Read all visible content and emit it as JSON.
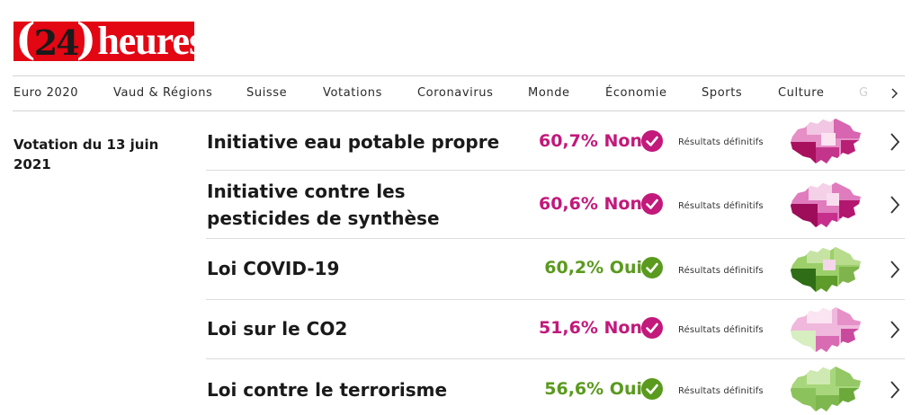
{
  "brand": {
    "paren_open": "(",
    "number": "24",
    "paren_close": ")",
    "word": "heures"
  },
  "nav": {
    "items": [
      "Euro 2020",
      "Vaud & Régions",
      "Suisse",
      "Votations",
      "Coronavirus",
      "Monde",
      "Économie",
      "Sports",
      "Culture",
      "G"
    ],
    "next_icon": "chevron-right-icon"
  },
  "section": {
    "title": "Votation du 13 juin 2021"
  },
  "colors": {
    "no": "#c2197b",
    "yes": "#5a9a1e",
    "brand": "#e30613"
  },
  "votes": [
    {
      "title": "Initiative eau potable propre",
      "result": "60,7% Non",
      "outcome": "no",
      "status": "Résultats définitifs"
    },
    {
      "title": "Initiative contre les pesticides de synthèse",
      "result": "60,6% Non",
      "outcome": "no",
      "status": "Résultats définitifs"
    },
    {
      "title": "Loi COVID-19",
      "result": "60,2% Oui",
      "outcome": "yes",
      "status": "Résultats définitifs"
    },
    {
      "title": "Loi sur le CO2",
      "result": "51,6% Non",
      "outcome": "no",
      "status": "Résultats définitifs"
    },
    {
      "title": "Loi contre le terrorisme",
      "result": "56,6% Oui",
      "outcome": "yes",
      "status": "Résultats définitifs"
    }
  ]
}
